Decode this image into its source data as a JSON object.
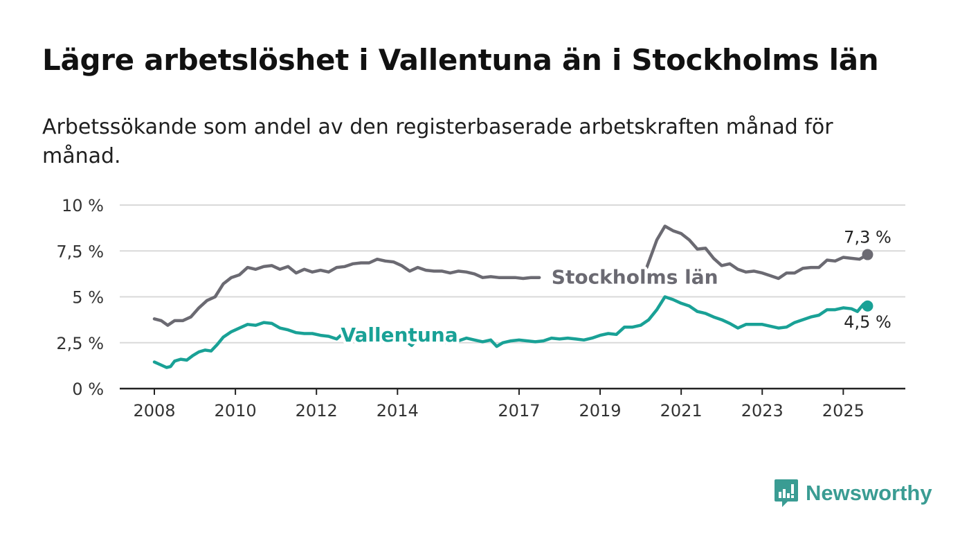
{
  "title": "Lägre arbetslöshet i Vallentuna än i Stockholms län",
  "subtitle": "Arbetssökande som andel av den registerbaserade arbetskraften månad för månad.",
  "brand": {
    "name": "Newsworthy",
    "icon": "bar-chart-speech-bubble-icon"
  },
  "chart_data": {
    "type": "line",
    "title": "Lägre arbetslöshet i Vallentuna än i Stockholms län",
    "subtitle": "Arbetssökande som andel av den registerbaserade arbetskraften månad för månad.",
    "ylim": [
      0,
      10
    ],
    "yticks": [
      {
        "value": 0,
        "label": "0 %"
      },
      {
        "value": 2.5,
        "label": "2,5 %"
      },
      {
        "value": 5,
        "label": "5 %"
      },
      {
        "value": 7.5,
        "label": "7,5 %"
      },
      {
        "value": 10,
        "label": "10 %"
      }
    ],
    "xlim": [
      2007.6,
      2026.4
    ],
    "xticks": [
      {
        "value": 2008,
        "label": "2008"
      },
      {
        "value": 2010,
        "label": "2010"
      },
      {
        "value": 2012,
        "label": "2012"
      },
      {
        "value": 2014,
        "label": "2014"
      },
      {
        "value": 2017,
        "label": "2017"
      },
      {
        "value": 2019,
        "label": "2019"
      },
      {
        "value": 2021,
        "label": "2021"
      },
      {
        "value": 2023,
        "label": "2023"
      },
      {
        "value": 2025,
        "label": "2025"
      }
    ],
    "grid": true,
    "legend": "direct-labels",
    "series": [
      {
        "name": "Stockholms län",
        "color": "#6b6a72",
        "segments": [
          [
            [
              2008,
              3.8
            ],
            [
              2008.17,
              3.7
            ],
            [
              2008.33,
              3.45
            ],
            [
              2008.5,
              3.7
            ],
            [
              2008.7,
              3.7
            ],
            [
              2008.9,
              3.9
            ],
            [
              2009.1,
              4.4
            ],
            [
              2009.3,
              4.8
            ],
            [
              2009.5,
              5.0
            ],
            [
              2009.7,
              5.7
            ],
            [
              2009.9,
              6.05
            ],
            [
              2010.1,
              6.2
            ],
            [
              2010.3,
              6.6
            ],
            [
              2010.5,
              6.5
            ],
            [
              2010.7,
              6.65
            ],
            [
              2010.9,
              6.7
            ],
            [
              2011.1,
              6.5
            ],
            [
              2011.3,
              6.65
            ],
            [
              2011.5,
              6.3
            ],
            [
              2011.7,
              6.5
            ],
            [
              2011.9,
              6.35
            ],
            [
              2012.1,
              6.45
            ],
            [
              2012.3,
              6.35
            ],
            [
              2012.5,
              6.6
            ],
            [
              2012.7,
              6.65
            ],
            [
              2012.9,
              6.8
            ],
            [
              2013.1,
              6.85
            ],
            [
              2013.3,
              6.85
            ],
            [
              2013.5,
              7.05
            ],
            [
              2013.7,
              6.95
            ],
            [
              2013.9,
              6.9
            ],
            [
              2014.1,
              6.7
            ],
            [
              2014.3,
              6.4
            ],
            [
              2014.5,
              6.6
            ],
            [
              2014.7,
              6.45
            ],
            [
              2014.9,
              6.4
            ],
            [
              2015.1,
              6.4
            ],
            [
              2015.3,
              6.3
            ],
            [
              2015.5,
              6.4
            ],
            [
              2015.7,
              6.35
            ],
            [
              2015.9,
              6.25
            ],
            [
              2016.1,
              6.05
            ],
            [
              2016.3,
              6.1
            ],
            [
              2016.5,
              6.05
            ],
            [
              2016.7,
              6.05
            ],
            [
              2016.9,
              6.05
            ],
            [
              2017.1,
              6.0
            ],
            [
              2017.3,
              6.05
            ],
            [
              2017.5,
              6.05
            ]
          ],
          [
            [
              2020.15,
              6.6
            ],
            [
              2020.4,
              8.1
            ],
            [
              2020.6,
              8.85
            ],
            [
              2020.8,
              8.6
            ],
            [
              2021.0,
              8.45
            ],
            [
              2021.2,
              8.1
            ],
            [
              2021.4,
              7.6
            ],
            [
              2021.6,
              7.65
            ],
            [
              2021.8,
              7.1
            ],
            [
              2022.0,
              6.7
            ],
            [
              2022.2,
              6.8
            ],
            [
              2022.4,
              6.5
            ],
            [
              2022.6,
              6.35
            ],
            [
              2022.8,
              6.4
            ],
            [
              2023.0,
              6.3
            ],
            [
              2023.2,
              6.15
            ],
            [
              2023.4,
              6.0
            ],
            [
              2023.6,
              6.3
            ],
            [
              2023.8,
              6.3
            ],
            [
              2024.0,
              6.55
            ],
            [
              2024.2,
              6.6
            ],
            [
              2024.4,
              6.6
            ],
            [
              2024.6,
              7.0
            ],
            [
              2024.8,
              6.95
            ],
            [
              2025.0,
              7.15
            ],
            [
              2025.2,
              7.1
            ],
            [
              2025.4,
              7.05
            ],
            [
              2025.6,
              7.3
            ]
          ]
        ],
        "label": {
          "text": "Stockholms län",
          "x": 2017.8,
          "y": 6.05
        },
        "end_label": {
          "text": "7,3 %",
          "x": 2025.6,
          "y": 7.3
        }
      },
      {
        "name": "Vallentuna",
        "color": "#19a196",
        "segments": [
          [
            [
              2008,
              1.45
            ],
            [
              2008.15,
              1.3
            ],
            [
              2008.3,
              1.15
            ],
            [
              2008.4,
              1.2
            ],
            [
              2008.5,
              1.5
            ],
            [
              2008.65,
              1.6
            ],
            [
              2008.8,
              1.55
            ],
            [
              2008.95,
              1.8
            ],
            [
              2009.1,
              2.0
            ],
            [
              2009.25,
              2.1
            ],
            [
              2009.4,
              2.05
            ],
            [
              2009.55,
              2.4
            ],
            [
              2009.7,
              2.8
            ],
            [
              2009.9,
              3.1
            ],
            [
              2010.1,
              3.3
            ],
            [
              2010.3,
              3.5
            ],
            [
              2010.5,
              3.45
            ],
            [
              2010.7,
              3.6
            ],
            [
              2010.9,
              3.55
            ],
            [
              2011.1,
              3.3
            ],
            [
              2011.3,
              3.2
            ],
            [
              2011.5,
              3.05
            ],
            [
              2011.7,
              3.0
            ],
            [
              2011.9,
              3.0
            ],
            [
              2012.1,
              2.9
            ],
            [
              2012.3,
              2.85
            ],
            [
              2012.5,
              2.7
            ],
            [
              2012.6,
              2.9
            ]
          ],
          [
            [
              2014.2,
              2.6
            ],
            [
              2014.35,
              2.35
            ],
            [
              2014.45,
              2.6
            ]
          ],
          [
            [
              2014.75,
              2.6
            ],
            [
              2014.9,
              2.65
            ]
          ],
          [
            [
              2015.1,
              2.55
            ],
            [
              2015.3,
              2.5
            ],
            [
              2015.5,
              2.6
            ],
            [
              2015.7,
              2.75
            ],
            [
              2015.9,
              2.65
            ],
            [
              2016.1,
              2.55
            ],
            [
              2016.3,
              2.65
            ],
            [
              2016.45,
              2.3
            ],
            [
              2016.6,
              2.5
            ],
            [
              2016.8,
              2.6
            ],
            [
              2017.0,
              2.65
            ],
            [
              2017.2,
              2.6
            ],
            [
              2017.4,
              2.55
            ],
            [
              2017.6,
              2.6
            ],
            [
              2017.8,
              2.75
            ],
            [
              2018.0,
              2.7
            ],
            [
              2018.2,
              2.75
            ],
            [
              2018.4,
              2.7
            ],
            [
              2018.6,
              2.65
            ],
            [
              2018.8,
              2.75
            ],
            [
              2019.0,
              2.9
            ],
            [
              2019.2,
              3.0
            ],
            [
              2019.4,
              2.95
            ],
            [
              2019.6,
              3.35
            ],
            [
              2019.8,
              3.35
            ],
            [
              2020.0,
              3.45
            ],
            [
              2020.2,
              3.75
            ],
            [
              2020.4,
              4.3
            ],
            [
              2020.6,
              5.0
            ],
            [
              2020.8,
              4.85
            ],
            [
              2021.0,
              4.65
            ],
            [
              2021.2,
              4.5
            ],
            [
              2021.4,
              4.2
            ],
            [
              2021.6,
              4.1
            ],
            [
              2021.8,
              3.9
            ],
            [
              2022.0,
              3.75
            ],
            [
              2022.2,
              3.55
            ],
            [
              2022.4,
              3.3
            ],
            [
              2022.6,
              3.5
            ],
            [
              2022.8,
              3.5
            ],
            [
              2023.0,
              3.5
            ],
            [
              2023.2,
              3.4
            ],
            [
              2023.4,
              3.3
            ],
            [
              2023.6,
              3.35
            ],
            [
              2023.8,
              3.6
            ],
            [
              2024.0,
              3.75
            ],
            [
              2024.2,
              3.9
            ],
            [
              2024.4,
              4.0
            ],
            [
              2024.6,
              4.3
            ],
            [
              2024.8,
              4.3
            ],
            [
              2025.0,
              4.4
            ],
            [
              2025.2,
              4.35
            ],
            [
              2025.35,
              4.2
            ],
            [
              2025.5,
              4.6
            ],
            [
              2025.6,
              4.5
            ]
          ]
        ],
        "label": {
          "text": "Vallentuna",
          "x": 2012.6,
          "y": 2.9
        },
        "end_label": {
          "text": "4,5 %",
          "x": 2025.6,
          "y": 4.5
        }
      }
    ]
  }
}
